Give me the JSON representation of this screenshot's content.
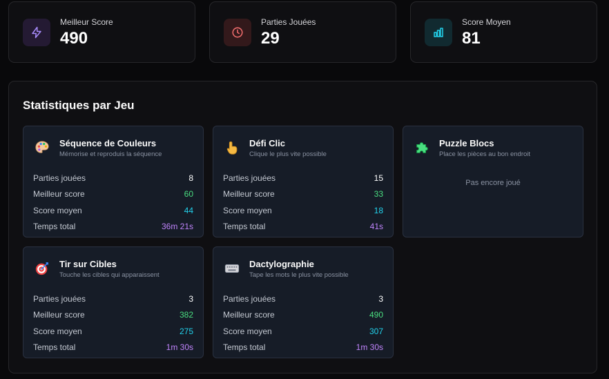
{
  "summary": [
    {
      "label": "Meilleur Score",
      "value": "490",
      "icon": "zap-icon",
      "icon_color": "#a78bfa",
      "bg": "#241a33"
    },
    {
      "label": "Parties Jouées",
      "value": "29",
      "icon": "clock-icon",
      "icon_color": "#f87171",
      "bg": "#33191b"
    },
    {
      "label": "Score Moyen",
      "value": "81",
      "icon": "bar-chart-icon",
      "icon_color": "#22d3ee",
      "bg": "#112a30"
    }
  ],
  "stats": {
    "title": "Statistiques par Jeu",
    "stat_labels": {
      "played": "Parties jouées",
      "best": "Meilleur score",
      "avg": "Score moyen",
      "time": "Temps total"
    },
    "games": [
      {
        "name": "Séquence de Couleurs",
        "desc": "Mémorise et reproduis la séquence",
        "icon": "palette-icon",
        "played": "8",
        "best": "60",
        "avg": "44",
        "time": "36m 21s"
      },
      {
        "name": "Défi Clic",
        "desc": "Clique le plus vite possible",
        "icon": "pointing-hand-icon",
        "played": "15",
        "best": "33",
        "avg": "18",
        "time": "41s"
      },
      {
        "name": "Puzzle Blocs",
        "desc": "Place les pièces au bon endroit",
        "icon": "puzzle-icon",
        "empty": "Pas encore joué"
      },
      {
        "name": "Tir sur Cibles",
        "desc": "Touche les cibles qui apparaissent",
        "icon": "target-icon",
        "played": "3",
        "best": "382",
        "avg": "275",
        "time": "1m 30s"
      },
      {
        "name": "Dactylographie",
        "desc": "Tape les mots le plus vite possible",
        "icon": "keyboard-icon",
        "played": "3",
        "best": "490",
        "avg": "307",
        "time": "1m 30s"
      }
    ]
  }
}
